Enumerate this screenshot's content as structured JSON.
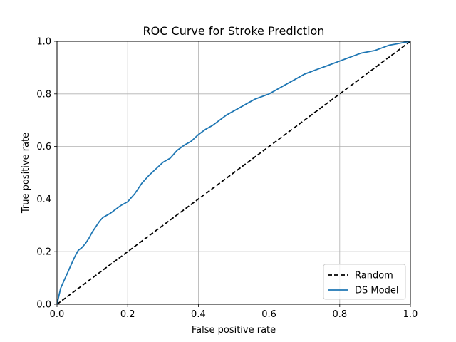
{
  "chart_data": {
    "type": "line",
    "title": "ROC Curve for Stroke Prediction",
    "xlabel": "False positive rate",
    "ylabel": "True positive rate",
    "xlim": [
      0,
      1
    ],
    "ylim": [
      0,
      1
    ],
    "xticks": [
      "0.0",
      "0.2",
      "0.4",
      "0.6",
      "0.8",
      "1.0"
    ],
    "yticks": [
      "0.0",
      "0.2",
      "0.4",
      "0.6",
      "0.8",
      "1.0"
    ],
    "grid": true,
    "legend_position": "lower-right",
    "series": [
      {
        "name": "Random",
        "color": "#000000",
        "style": "dashed",
        "x": [
          0,
          1
        ],
        "y": [
          0,
          1
        ]
      },
      {
        "name": "DS Model",
        "color": "#1f77b4",
        "style": "solid",
        "x": [
          0.0,
          0.005,
          0.01,
          0.02,
          0.03,
          0.04,
          0.05,
          0.06,
          0.07,
          0.08,
          0.09,
          0.1,
          0.11,
          0.12,
          0.13,
          0.15,
          0.17,
          0.18,
          0.2,
          0.22,
          0.24,
          0.26,
          0.28,
          0.3,
          0.32,
          0.34,
          0.36,
          0.38,
          0.4,
          0.42,
          0.44,
          0.46,
          0.48,
          0.5,
          0.52,
          0.54,
          0.56,
          0.58,
          0.6,
          0.62,
          0.64,
          0.66,
          0.68,
          0.7,
          0.72,
          0.74,
          0.76,
          0.78,
          0.8,
          0.82,
          0.84,
          0.86,
          0.88,
          0.9,
          0.92,
          0.94,
          0.96,
          0.98,
          1.0
        ],
        "y": [
          0.0,
          0.03,
          0.06,
          0.09,
          0.12,
          0.15,
          0.18,
          0.205,
          0.215,
          0.23,
          0.25,
          0.275,
          0.295,
          0.315,
          0.33,
          0.345,
          0.365,
          0.375,
          0.39,
          0.42,
          0.46,
          0.49,
          0.515,
          0.54,
          0.555,
          0.585,
          0.605,
          0.62,
          0.645,
          0.665,
          0.68,
          0.7,
          0.72,
          0.735,
          0.75,
          0.765,
          0.78,
          0.79,
          0.8,
          0.815,
          0.83,
          0.845,
          0.86,
          0.875,
          0.885,
          0.895,
          0.905,
          0.915,
          0.925,
          0.935,
          0.945,
          0.955,
          0.96,
          0.965,
          0.975,
          0.985,
          0.99,
          0.995,
          1.0
        ]
      }
    ]
  }
}
